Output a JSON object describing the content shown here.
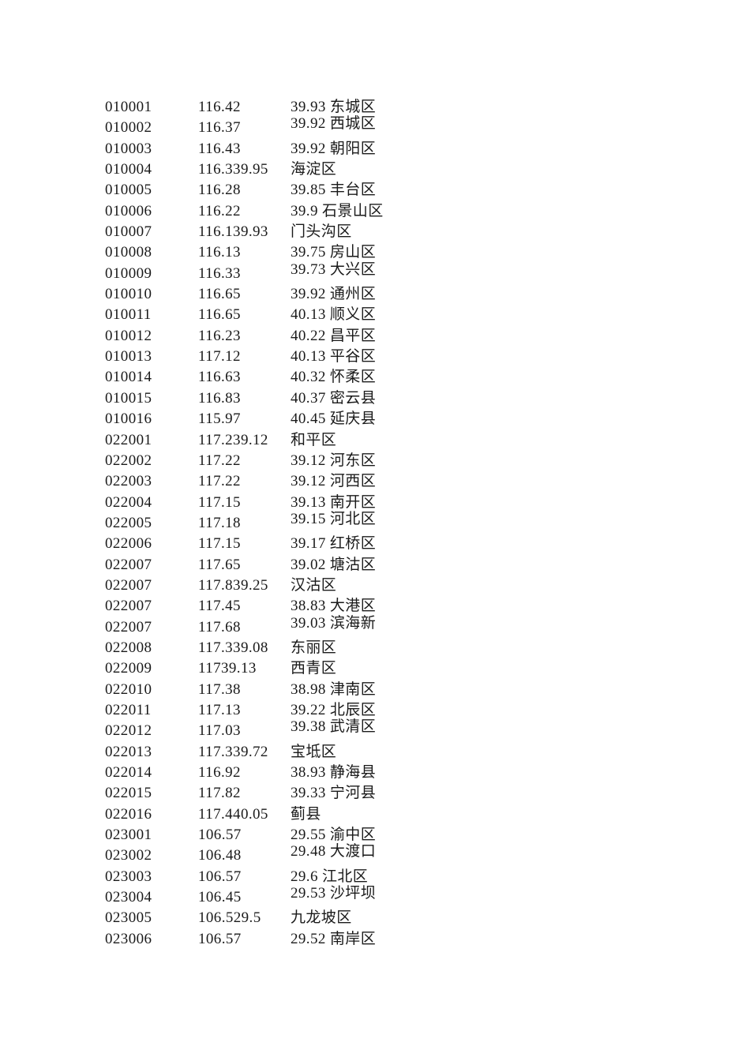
{
  "page": {
    "background": "#ffffff",
    "text_color": "#1a1a1a"
  },
  "table": {
    "rows": [
      {
        "code": "010001",
        "longitude": "116.42",
        "latitude_name": "39.93 东城区",
        "raised": false
      },
      {
        "code": "010002",
        "longitude": "116.37",
        "latitude_name": "39.92 西城区",
        "raised": true
      },
      {
        "code": "010003",
        "longitude": "116.43",
        "latitude_name": "39.92 朝阳区",
        "raised": false
      },
      {
        "code": "010004",
        "longitude": "116.339.95",
        "latitude_name": "海淀区",
        "raised": false
      },
      {
        "code": "010005",
        "longitude": "116.28",
        "latitude_name": "39.85 丰台区",
        "raised": false
      },
      {
        "code": "010006",
        "longitude": "116.22",
        "latitude_name": "39.9 石景山区",
        "raised": false
      },
      {
        "code": "010007",
        "longitude": "116.139.93",
        "latitude_name": "门头沟区",
        "raised": false
      },
      {
        "code": "010008",
        "longitude": "116.13",
        "latitude_name": "39.75 房山区",
        "raised": false
      },
      {
        "code": "010009",
        "longitude": "116.33",
        "latitude_name": "39.73 大兴区",
        "raised": true
      },
      {
        "code": "010010",
        "longitude": "116.65",
        "latitude_name": "39.92 通州区",
        "raised": false
      },
      {
        "code": "010011",
        "longitude": "116.65",
        "latitude_name": "40.13 顺义区",
        "raised": false
      },
      {
        "code": "010012",
        "longitude": "116.23",
        "latitude_name": "40.22 昌平区",
        "raised": false
      },
      {
        "code": "010013",
        "longitude": "117.12",
        "latitude_name": "40.13 平谷区",
        "raised": false
      },
      {
        "code": "010014",
        "longitude": "116.63",
        "latitude_name": "40.32 怀柔区",
        "raised": false
      },
      {
        "code": "010015",
        "longitude": "116.83",
        "latitude_name": "40.37 密云县",
        "raised": false
      },
      {
        "code": "010016",
        "longitude": "115.97",
        "latitude_name": "40.45 延庆县",
        "raised": false
      },
      {
        "code": "022001",
        "longitude": "117.239.12",
        "latitude_name": "和平区",
        "raised": false
      },
      {
        "code": "022002",
        "longitude": "117.22",
        "latitude_name": "39.12 河东区",
        "raised": false
      },
      {
        "code": "022003",
        "longitude": "117.22",
        "latitude_name": "39.12 河西区",
        "raised": false
      },
      {
        "code": "022004",
        "longitude": "117.15",
        "latitude_name": "39.13 南开区",
        "raised": false
      },
      {
        "code": "022005",
        "longitude": "117.18",
        "latitude_name": "39.15 河北区",
        "raised": true
      },
      {
        "code": "022006",
        "longitude": "117.15",
        "latitude_name": "39.17 红桥区",
        "raised": false
      },
      {
        "code": "022007",
        "longitude": "117.65",
        "latitude_name": "39.02 塘沽区",
        "raised": false
      },
      {
        "code": "022007",
        "longitude": "117.839.25",
        "latitude_name": "汉沽区",
        "raised": false
      },
      {
        "code": "022007",
        "longitude": "117.45",
        "latitude_name": "38.83 大港区",
        "raised": false
      },
      {
        "code": "022007",
        "longitude": "117.68",
        "latitude_name": "39.03 滨海新",
        "raised": true
      },
      {
        "code": "022008",
        "longitude": "117.339.08",
        "latitude_name": "东丽区",
        "raised": false
      },
      {
        "code": "022009",
        "longitude": "11739.13",
        "latitude_name": "西青区",
        "raised": false
      },
      {
        "code": "022010",
        "longitude": "117.38",
        "latitude_name": "38.98 津南区",
        "raised": false
      },
      {
        "code": "022011",
        "longitude": "117.13",
        "latitude_name": "39.22 北辰区",
        "raised": false
      },
      {
        "code": "022012",
        "longitude": "117.03",
        "latitude_name": "39.38 武清区",
        "raised": true
      },
      {
        "code": "022013",
        "longitude": "117.339.72",
        "latitude_name": "宝坻区",
        "raised": false
      },
      {
        "code": "022014",
        "longitude": "116.92",
        "latitude_name": "38.93 静海县",
        "raised": false
      },
      {
        "code": "022015",
        "longitude": "117.82",
        "latitude_name": "39.33 宁河县",
        "raised": false
      },
      {
        "code": "022016",
        "longitude": "117.440.05",
        "latitude_name": "蓟县",
        "raised": false
      },
      {
        "code": "023001",
        "longitude": "106.57",
        "latitude_name": "29.55 渝中区",
        "raised": false
      },
      {
        "code": "023002",
        "longitude": "106.48",
        "latitude_name": "29.48 大渡口",
        "raised": true
      },
      {
        "code": "023003",
        "longitude": "106.57",
        "latitude_name": "29.6 江北区",
        "raised": false
      },
      {
        "code": "023004",
        "longitude": "106.45",
        "latitude_name": "29.53 沙坪坝",
        "raised": true
      },
      {
        "code": "023005",
        "longitude": "106.529.5",
        "latitude_name": "九龙坡区",
        "raised": false
      },
      {
        "code": "023006",
        "longitude": "106.57",
        "latitude_name": "29.52 南岸区",
        "raised": false
      }
    ]
  }
}
